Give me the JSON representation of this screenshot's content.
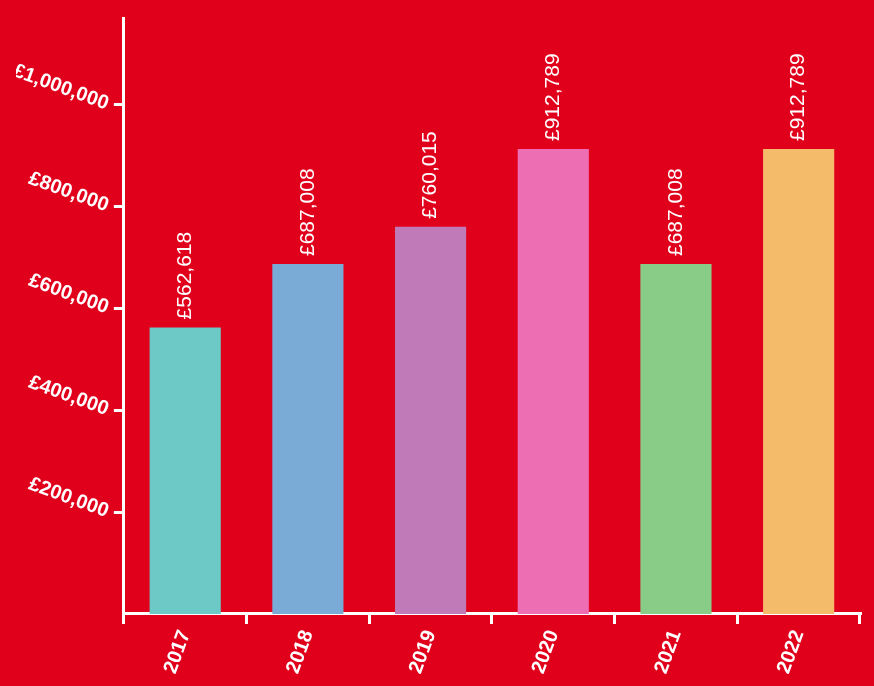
{
  "chart_data": {
    "type": "bar",
    "categories": [
      "2017",
      "2018",
      "2019",
      "2020",
      "2021",
      "2022"
    ],
    "values": [
      562618,
      687008,
      760015,
      912789,
      687008,
      912789
    ],
    "value_labels": [
      "£562,618",
      "£687,008",
      "£760,015",
      "£912,789",
      "£687,008",
      "£912,789"
    ],
    "colors": [
      "#6cc9c6",
      "#7aaad6",
      "#c07ab7",
      "#ee6eb4",
      "#88cc88",
      "#f4bb6a"
    ],
    "ylim": [
      0,
      1170000
    ],
    "yticks": [
      {
        "value": 200000,
        "label": "£200,000"
      },
      {
        "value": 400000,
        "label": "£400,000"
      },
      {
        "value": 600000,
        "label": "£600,000"
      },
      {
        "value": 800000,
        "label": "£800,000"
      },
      {
        "value": 1000000,
        "label": "£1,000,000"
      }
    ],
    "grid": false,
    "data_labels": true
  }
}
